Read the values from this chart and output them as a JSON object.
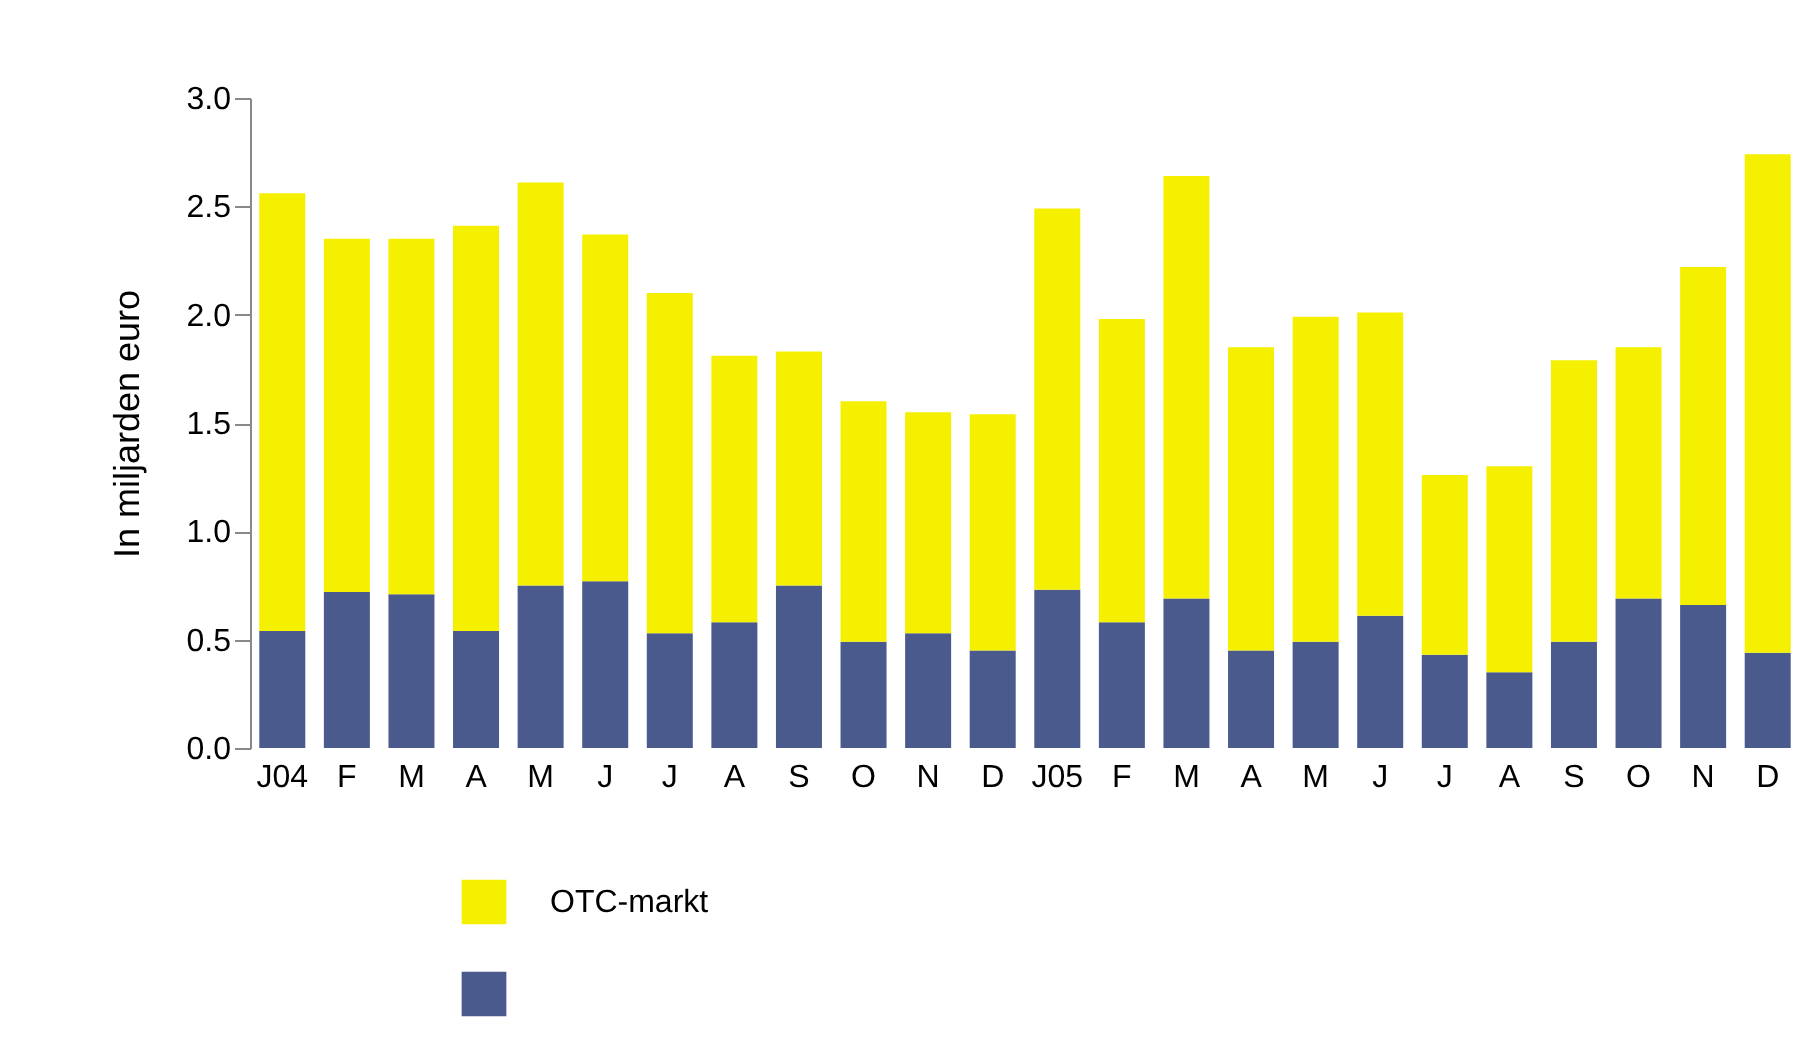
{
  "chart_data": {
    "type": "bar",
    "stacked": true,
    "ylabel": "In miljarden euro",
    "categories": [
      "J04",
      "F",
      "M",
      "A",
      "M",
      "J",
      "J",
      "A",
      "S",
      "O",
      "N",
      "D",
      "J05",
      "F",
      "M",
      "A",
      "M",
      "J",
      "J",
      "A",
      "S",
      "O",
      "N",
      "D"
    ],
    "series": [
      {
        "color": "#4a5a8c",
        "values": [
          0.54,
          0.72,
          0.71,
          0.54,
          0.75,
          0.77,
          0.53,
          0.58,
          0.75,
          0.49,
          0.53,
          0.45,
          0.73,
          0.58,
          0.69,
          0.45,
          0.49,
          0.61,
          0.43,
          0.35,
          0.49,
          0.69,
          0.66,
          0.44
        ]
      },
      {
        "name": "OTC-markt",
        "color": "#f5f000",
        "values": [
          2.02,
          1.63,
          1.64,
          1.87,
          1.86,
          1.6,
          1.57,
          1.23,
          1.08,
          1.11,
          1.02,
          1.09,
          1.76,
          1.4,
          1.95,
          1.4,
          1.5,
          1.4,
          0.83,
          0.95,
          1.3,
          1.16,
          1.56,
          2.3
        ]
      }
    ],
    "ylim": [
      0,
      3
    ],
    "yticks": [
      {
        "value": 0,
        "label": "0.0"
      },
      {
        "value": 0.5,
        "label": "0.5"
      },
      {
        "value": 1,
        "label": "1.0"
      },
      {
        "value": 1.5,
        "label": "1.5"
      },
      {
        "value": 2,
        "label": "2.0"
      },
      {
        "value": 2.5,
        "label": "2.5"
      },
      {
        "value": 3,
        "label": "3.0"
      }
    ],
    "grid": false,
    "legend": "bottom"
  }
}
